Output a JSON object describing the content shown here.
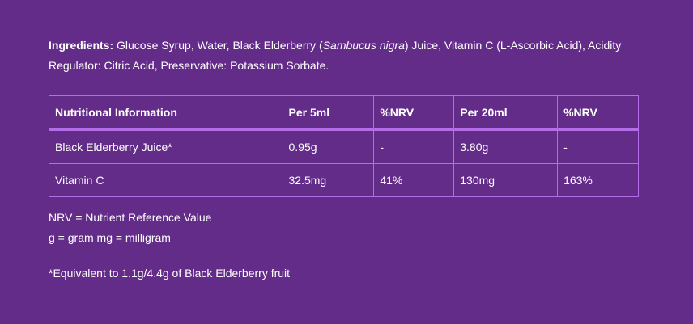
{
  "ingredients": {
    "label": "Ingredients:",
    "text_before_italic": " Glucose Syrup, Water, Black Elderberry (",
    "italic": "Sambucus nigra",
    "text_after_italic": ") Juice, Vitamin C (L-Ascorbic Acid), Acidity Regulator: Citric Acid, Preservative: Potassium Sorbate."
  },
  "table": {
    "headers": [
      "Nutritional Information",
      "Per 5ml",
      "%NRV",
      "Per 20ml",
      "%NRV"
    ],
    "rows": [
      [
        "Black Elderberry Juice*",
        "0.95g",
        "-",
        "3.80g",
        "-"
      ],
      [
        "Vitamin C",
        "32.5mg",
        "41%",
        "130mg",
        "163%"
      ]
    ]
  },
  "notes": [
    "NRV = Nutrient Reference Value",
    "g = gram mg = milligram"
  ],
  "footnote": "*Equivalent to 1.1g/4.4g of Black Elderberry fruit"
}
